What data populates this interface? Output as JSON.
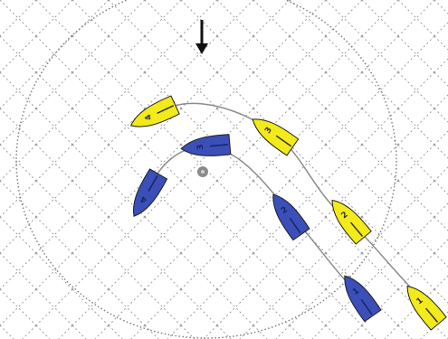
{
  "colors": {
    "background": "#ffffff",
    "grid": "#9a9a9a",
    "zone_circle": "#7f7f7f",
    "track": "#8c8c8c",
    "wind_arrow": "#111111",
    "mark": "#8a8a8a",
    "yellow_boat": "#f2ea1a",
    "blue_boat": "#3a4fb8",
    "outline": "#1f1f1f"
  },
  "icons": {
    "wind": "down-arrow-icon",
    "mark": "circle-mark-icon"
  },
  "boats": {
    "yellow": [
      {
        "label": "1"
      },
      {
        "label": "2"
      },
      {
        "label": "3"
      },
      {
        "label": "4"
      }
    ],
    "blue": [
      {
        "label": "1"
      },
      {
        "label": "2"
      },
      {
        "label": "3"
      },
      {
        "label": "4"
      }
    ]
  }
}
